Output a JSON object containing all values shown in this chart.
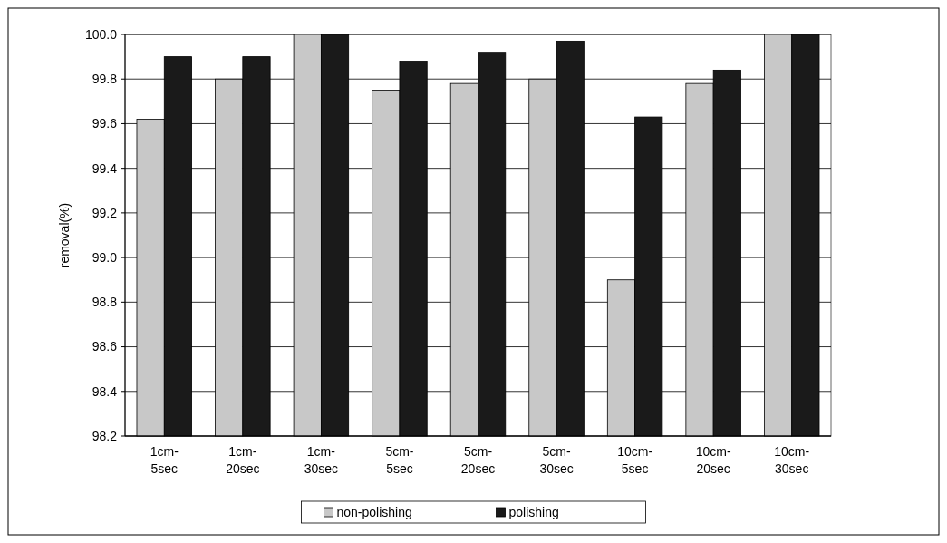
{
  "chart_data": {
    "type": "bar",
    "ylabel": "removal(%)",
    "categories": [
      "1cm-5sec",
      "1cm-20sec",
      "1cm-30sec",
      "5cm-5sec",
      "5cm-20sec",
      "5cm-30sec",
      "10cm-5sec",
      "10cm-20sec",
      "10cm-30sec"
    ],
    "series": [
      {
        "name": "non-polishing",
        "color": "#c8c8c8",
        "values": [
          99.62,
          99.8,
          100.0,
          99.75,
          99.78,
          99.8,
          98.9,
          99.78,
          100.0
        ]
      },
      {
        "name": "polishing",
        "color": "#1a1a1a",
        "values": [
          99.9,
          99.9,
          100.0,
          99.88,
          99.92,
          99.97,
          99.63,
          99.84,
          100.0
        ]
      }
    ],
    "ylim": [
      98.2,
      100.0
    ],
    "yticks": [
      {
        "value": 98.2,
        "label": "98.2"
      },
      {
        "value": 98.4,
        "label": "98.4"
      },
      {
        "value": 98.6,
        "label": "98.6"
      },
      {
        "value": 98.8,
        "label": "98.8"
      },
      {
        "value": 99.0,
        "label": "99.0"
      },
      {
        "value": 99.2,
        "label": "99.2"
      },
      {
        "value": 99.4,
        "label": "99.4"
      },
      {
        "value": 99.6,
        "label": "99.6"
      },
      {
        "value": 99.8,
        "label": "99.8"
      },
      {
        "value": 100.0,
        "label": "100.0"
      }
    ],
    "grid": "y",
    "legend": "bottom"
  }
}
